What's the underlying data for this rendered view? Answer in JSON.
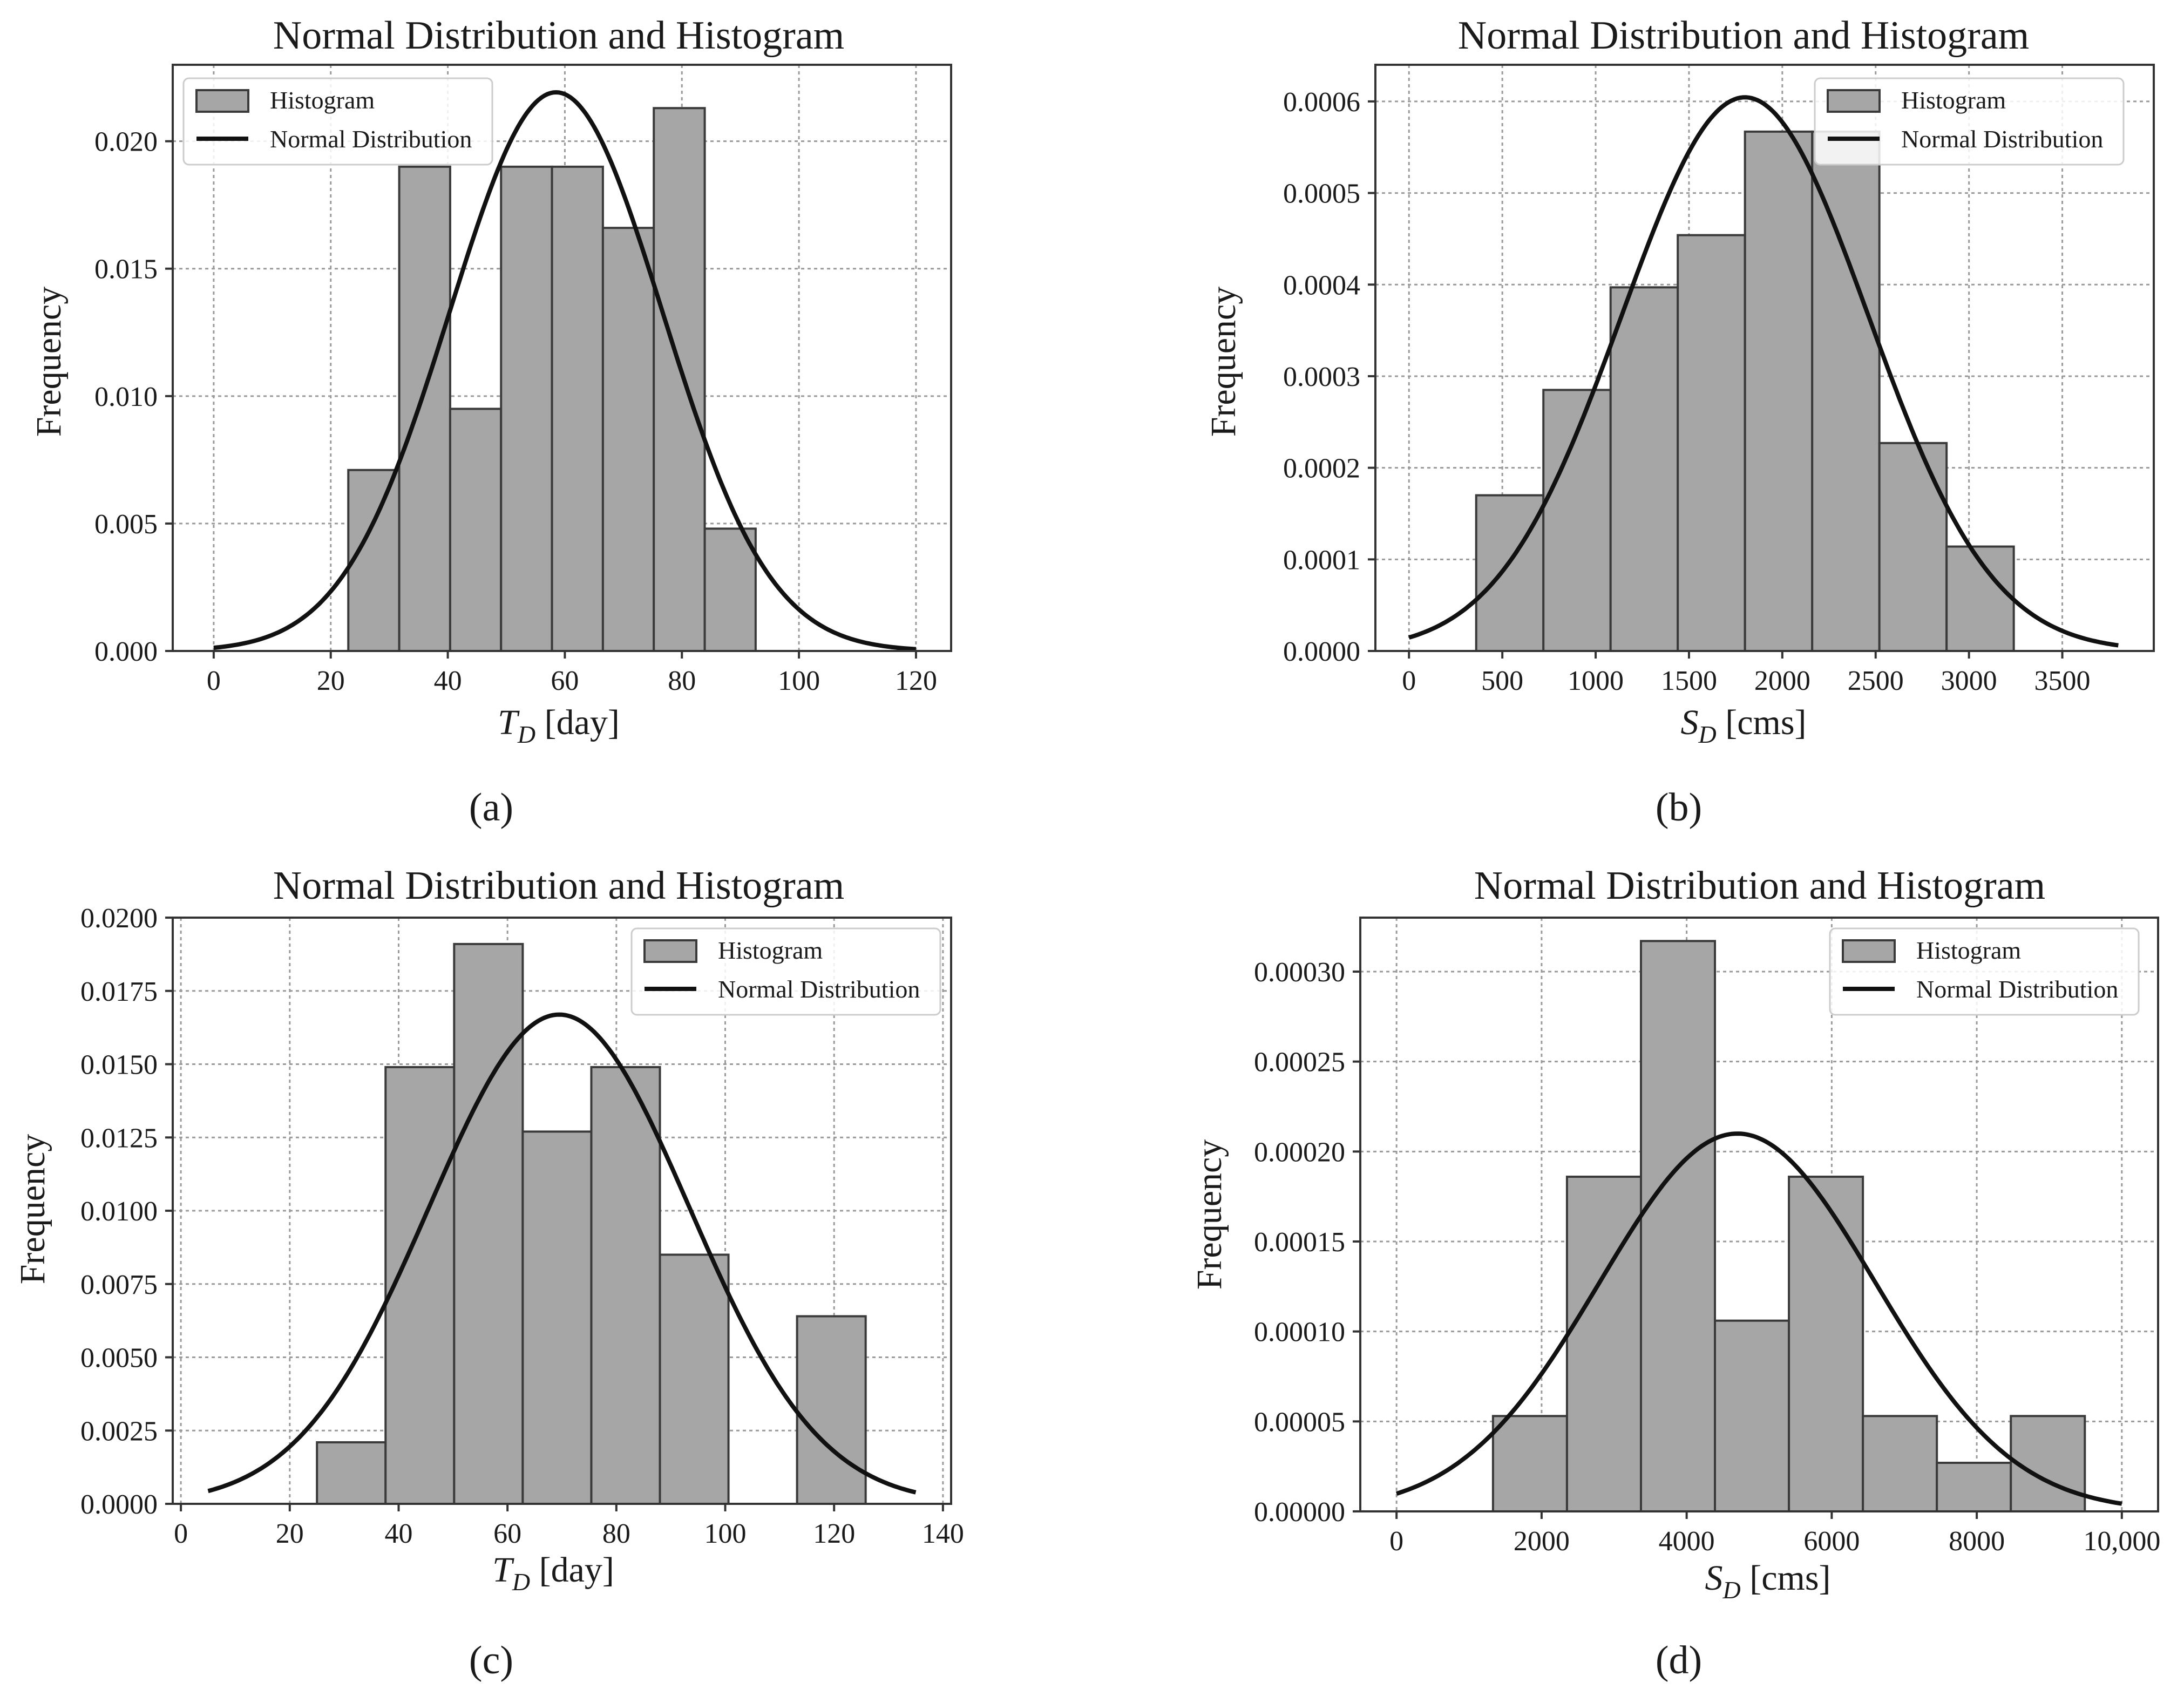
{
  "chart_data": [
    {
      "panel_label": "(a)",
      "type": "bar",
      "title": "Normal Distribution and Histogram",
      "xlabel": "T_D [day]",
      "xlabel_main": "T",
      "xlabel_sub": "D",
      "xlabel_unit": "[day]",
      "ylabel": "Frequency",
      "xlim": [
        -7,
        126
      ],
      "ylim": [
        0,
        0.023
      ],
      "grid": true,
      "legend_position": "upper-left",
      "xticks": [
        0,
        20,
        40,
        60,
        80,
        100,
        120
      ],
      "xtick_labels": [
        "0",
        "20",
        "40",
        "60",
        "80",
        "100",
        "120"
      ],
      "yticks": [
        0,
        0.005,
        0.01,
        0.015,
        0.02
      ],
      "ytick_labels": [
        "0.000",
        "0.005",
        "0.010",
        "0.015",
        "0.020"
      ],
      "series": [
        {
          "name": "Histogram",
          "type": "histogram",
          "bin_edges": [
            23.0,
            31.7,
            40.4,
            49.1,
            57.8,
            66.5,
            75.2,
            83.9,
            92.6
          ],
          "values": [
            0.0071,
            0.019,
            0.0095,
            0.019,
            0.019,
            0.0166,
            0.0213,
            0.0048
          ],
          "color": "#a6a6a6"
        },
        {
          "name": "Normal Distribution",
          "type": "line",
          "mean": 58.5,
          "std": 18.2,
          "x_range": [
            0,
            120
          ],
          "color": "#111111"
        }
      ]
    },
    {
      "panel_label": "(b)",
      "type": "bar",
      "title": "Normal Distribution and Histogram",
      "xlabel": "S_D [cms]",
      "xlabel_main": "S",
      "xlabel_sub": "D",
      "xlabel_unit": "[cms]",
      "ylabel": "Frequency",
      "xlim": [
        -180,
        3990
      ],
      "ylim": [
        0,
        0.00064
      ],
      "grid": true,
      "legend_position": "upper-right",
      "xticks": [
        0,
        500,
        1000,
        1500,
        2000,
        2500,
        3000,
        3500
      ],
      "xtick_labels": [
        "0",
        "500",
        "1000",
        "1500",
        "2000",
        "2500",
        "3000",
        "3500"
      ],
      "yticks": [
        0,
        0.0001,
        0.0002,
        0.0003,
        0.0004,
        0.0005,
        0.0006
      ],
      "ytick_labels": [
        "0.0000",
        "0.0001",
        "0.0002",
        "0.0003",
        "0.0004",
        "0.0005",
        "0.0006"
      ],
      "series": [
        {
          "name": "Histogram",
          "type": "histogram",
          "bin_edges": [
            360,
            720,
            1080,
            1440,
            1800,
            2160,
            2520,
            2880,
            3240
          ],
          "values": [
            0.00017,
            0.000285,
            0.000397,
            0.000454,
            0.000567,
            0.000567,
            0.000227,
            0.000114
          ],
          "color": "#a6a6a6"
        },
        {
          "name": "Normal Distribution",
          "type": "line",
          "mean": 1800,
          "std": 660,
          "x_range": [
            0,
            3800
          ],
          "color": "#111111"
        }
      ]
    },
    {
      "panel_label": "(c)",
      "type": "bar",
      "title": "Normal Distribution and Histogram",
      "xlabel": "T_D [day]",
      "xlabel_main": "T",
      "xlabel_sub": "D",
      "xlabel_unit": "[day]",
      "ylabel": "Frequency",
      "xlim": [
        -1.5,
        141.5
      ],
      "ylim": [
        0,
        0.02
      ],
      "grid": true,
      "legend_position": "upper-right",
      "xticks": [
        0,
        20,
        40,
        60,
        80,
        100,
        120,
        140
      ],
      "xtick_labels": [
        "0",
        "20",
        "40",
        "60",
        "80",
        "100",
        "120",
        "140"
      ],
      "yticks": [
        0,
        0.0025,
        0.005,
        0.0075,
        0.01,
        0.0125,
        0.015,
        0.0175,
        0.02
      ],
      "ytick_labels": [
        "0.0000",
        "0.0025",
        "0.0050",
        "0.0075",
        "0.0100",
        "0.0125",
        "0.0150",
        "0.0175",
        "0.0200"
      ],
      "series": [
        {
          "name": "Histogram",
          "type": "histogram",
          "bin_edges": [
            25.0,
            37.6,
            50.2,
            62.8,
            75.4,
            88.0,
            100.6,
            113.2,
            125.8
          ],
          "values": [
            0.0021,
            0.0149,
            0.0191,
            0.0127,
            0.0149,
            0.0085,
            0,
            0.0064
          ],
          "color": "#a6a6a6"
        },
        {
          "name": "Normal Distribution",
          "type": "line",
          "mean": 69.5,
          "std": 23.9,
          "x_range": [
            5,
            135
          ],
          "color": "#111111"
        }
      ]
    },
    {
      "panel_label": "(d)",
      "type": "bar",
      "title": "Normal Distribution and Histogram",
      "xlabel": "S_D [cms]",
      "xlabel_main": "S",
      "xlabel_sub": "D",
      "xlabel_unit": "[cms]",
      "ylabel": "Frequency",
      "xlim": [
        -500,
        10500
      ],
      "ylim": [
        0,
        0.00033
      ],
      "grid": true,
      "legend_position": "upper-right",
      "xticks": [
        0,
        2000,
        4000,
        6000,
        8000,
        10000
      ],
      "xtick_labels": [
        "0",
        "2000",
        "4000",
        "6000",
        "8000",
        "10,000"
      ],
      "yticks": [
        0,
        5e-05,
        0.0001,
        0.00015,
        0.0002,
        0.00025,
        0.0003
      ],
      "ytick_labels": [
        "0.00000",
        "0.00005",
        "0.00010",
        "0.00015",
        "0.00020",
        "0.00025",
        "0.00030"
      ],
      "series": [
        {
          "name": "Histogram",
          "type": "histogram",
          "bin_edges": [
            1330,
            2350,
            3370,
            4390,
            5410,
            6430,
            7450,
            8470,
            9490
          ],
          "values": [
            5.3e-05,
            0.000186,
            0.000317,
            0.000106,
            0.000186,
            5.3e-05,
            2.7e-05,
            5.3e-05
          ],
          "color": "#a6a6a6"
        },
        {
          "name": "Normal Distribution",
          "type": "line",
          "mean": 4700,
          "std": 1900,
          "x_range": [
            0,
            10000
          ],
          "color": "#111111"
        }
      ]
    }
  ]
}
